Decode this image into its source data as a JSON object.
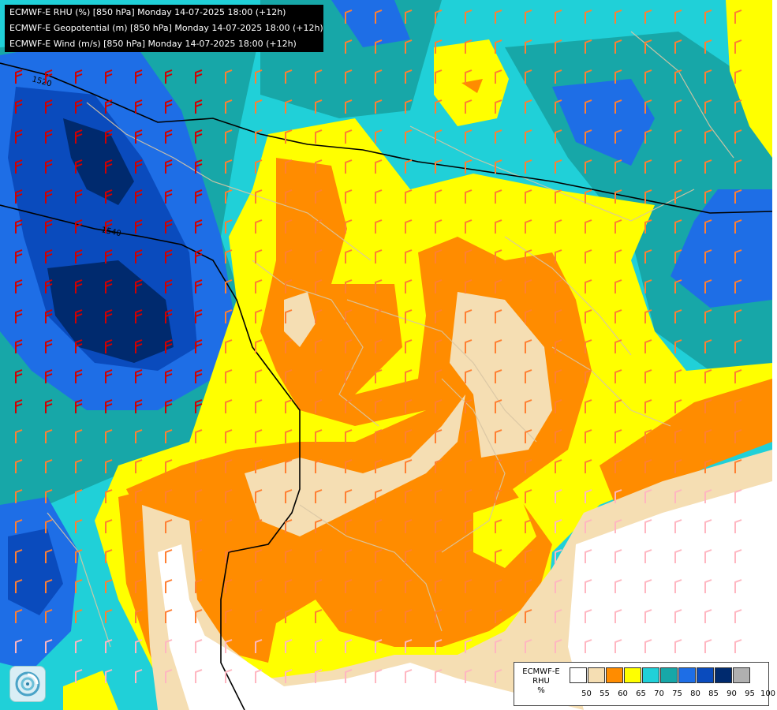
{
  "titles": [
    "ECMWF-E RHU (%) [850 hPa] Monday 14-07-2025 18:00 (+12h)",
    "ECMWF-E Geopotential (m) [850 hPa] Monday 14-07-2025 18:00 (+12h)",
    "ECMWF-E Wind (m/s) [850 hPa] Monday 14-07-2025 18:00 (+12h)"
  ],
  "contours": [
    {
      "label": "1520"
    },
    {
      "label": "1540"
    }
  ],
  "legend": {
    "lines": [
      "ECMWF-E",
      "RHU",
      "%"
    ],
    "levels": [
      "50",
      "55",
      "60",
      "65",
      "70",
      "75",
      "80",
      "85",
      "90",
      "95",
      "100"
    ],
    "colors": [
      "#ffffff",
      "#f5deb3",
      "#ff8c00",
      "#ffff00",
      "#20d0d8",
      "#17a7a8",
      "#1e6ee6",
      "#0a4bbd",
      "#002a6e",
      "#b0b0b0",
      "#606060"
    ]
  },
  "map_colors": {
    "rh50": "#ffffff",
    "rh55": "#f5deb3",
    "rh60": "#ff8c00",
    "rh65": "#ffff00",
    "rh70": "#20d0d8",
    "rh75": "#17a7a8",
    "rh80": "#1e6ee6",
    "rh85": "#0a4bbd",
    "rh90": "#002a6e",
    "borders": "#d9c6a4",
    "contour": "#000000",
    "barb_low": "#ffb6c1",
    "barb_mid": "#ff7f32",
    "barb_high": "#d00000"
  },
  "logo_icon": "ecmwf-logo-icon"
}
